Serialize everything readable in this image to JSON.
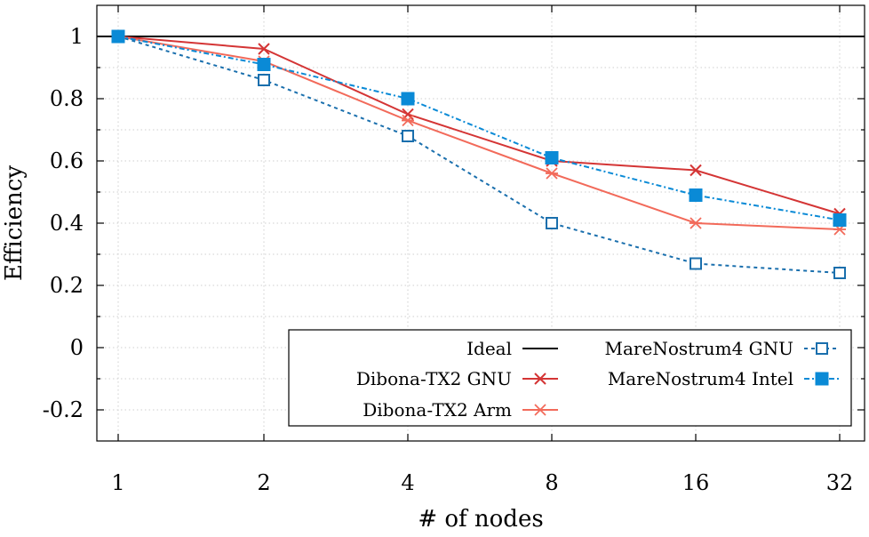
{
  "chart_data": {
    "type": "line",
    "x": [
      1,
      2,
      4,
      8,
      16,
      32
    ],
    "x_scale": "log2",
    "xlabel": "# of nodes",
    "ylabel": "Efficiency",
    "ylim": [
      -0.3,
      1.1
    ],
    "y_ticks": [
      -0.2,
      0,
      0.2,
      0.4,
      0.6,
      0.8,
      1
    ],
    "x_tick_labels": [
      "1",
      "2",
      "4",
      "8",
      "16",
      "32"
    ],
    "y_tick_labels": [
      "-0.2",
      "0",
      "0.2",
      "0.4",
      "0.6",
      "0.8",
      "1"
    ],
    "grid": true,
    "legend_position": "bottom-right",
    "series": [
      {
        "name": "Ideal",
        "values": [
          1,
          1,
          1,
          1,
          1,
          1
        ],
        "color": "#000000",
        "style": "solid",
        "marker": "none"
      },
      {
        "name": "Dibona-TX2 GNU",
        "values": [
          1,
          0.96,
          0.75,
          0.6,
          0.57,
          0.43
        ],
        "color": "#d43535",
        "style": "solid",
        "marker": "x"
      },
      {
        "name": "Dibona-TX2 Arm",
        "values": [
          1,
          0.92,
          0.73,
          0.56,
          0.4,
          0.38
        ],
        "color": "#f26a5a",
        "style": "solid",
        "marker": "star"
      },
      {
        "name": "MareNostrum4 GNU",
        "values": [
          1,
          0.86,
          0.68,
          0.4,
          0.27,
          0.24
        ],
        "color": "#1a6fad",
        "style": "dashed",
        "marker": "open-square"
      },
      {
        "name": "MareNostrum4 Intel",
        "values": [
          1,
          0.91,
          0.8,
          0.61,
          0.49,
          0.41
        ],
        "color": "#0a8ad6",
        "style": "dashdot",
        "marker": "filled-square"
      }
    ]
  }
}
